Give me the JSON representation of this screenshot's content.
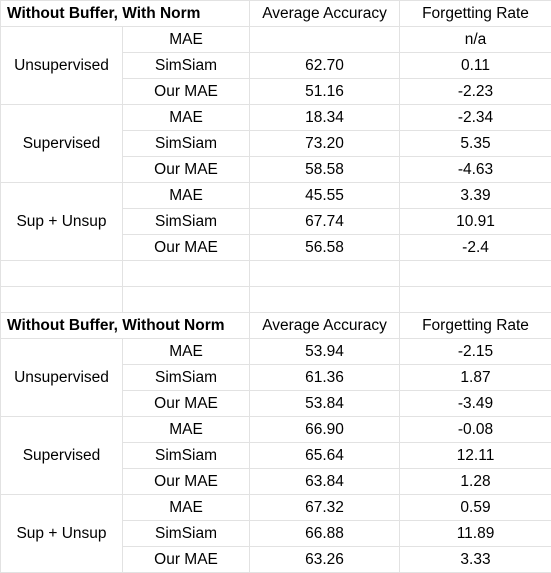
{
  "tables": [
    {
      "title": "Without Buffer, With Norm",
      "col_avg": "Average Accuracy",
      "col_forget": "Forgetting Rate",
      "groups": [
        {
          "name": "Unsupervised",
          "rows": [
            {
              "method": "MAE",
              "avg": "",
              "forget": "n/a"
            },
            {
              "method": "SimSiam",
              "avg": "62.70",
              "forget": "0.11"
            },
            {
              "method": "Our MAE",
              "avg": "51.16",
              "forget": "-2.23"
            }
          ]
        },
        {
          "name": "Supervised",
          "rows": [
            {
              "method": "MAE",
              "avg": "18.34",
              "forget": "-2.34"
            },
            {
              "method": "SimSiam",
              "avg": "73.20",
              "forget": "5.35"
            },
            {
              "method": "Our MAE",
              "avg": "58.58",
              "forget": "-4.63"
            }
          ]
        },
        {
          "name": "Sup + Unsup",
          "rows": [
            {
              "method": "MAE",
              "avg": "45.55",
              "forget": "3.39"
            },
            {
              "method": "SimSiam",
              "avg": "67.74",
              "forget": "10.91"
            },
            {
              "method": "Our MAE",
              "avg": "56.58",
              "forget": "-2.4"
            }
          ]
        }
      ]
    },
    {
      "title": "Without Buffer, Without Norm",
      "col_avg": "Average Accuracy",
      "col_forget": "Forgetting Rate",
      "groups": [
        {
          "name": "Unsupervised",
          "rows": [
            {
              "method": "MAE",
              "avg": "53.94",
              "forget": "-2.15"
            },
            {
              "method": "SimSiam",
              "avg": "61.36",
              "forget": "1.87"
            },
            {
              "method": "Our MAE",
              "avg": "53.84",
              "forget": "-3.49"
            }
          ]
        },
        {
          "name": "Supervised",
          "rows": [
            {
              "method": "MAE",
              "avg": "66.90",
              "forget": "-0.08"
            },
            {
              "method": "SimSiam",
              "avg": "65.64",
              "forget": "12.11"
            },
            {
              "method": "Our MAE",
              "avg": "63.84",
              "forget": "1.28"
            }
          ]
        },
        {
          "name": "Sup + Unsup",
          "rows": [
            {
              "method": "MAE",
              "avg": "67.32",
              "forget": "0.59"
            },
            {
              "method": "SimSiam",
              "avg": "66.88",
              "forget": "11.89"
            },
            {
              "method": "Our MAE",
              "avg": "63.26",
              "forget": "3.33"
            }
          ]
        }
      ]
    }
  ]
}
